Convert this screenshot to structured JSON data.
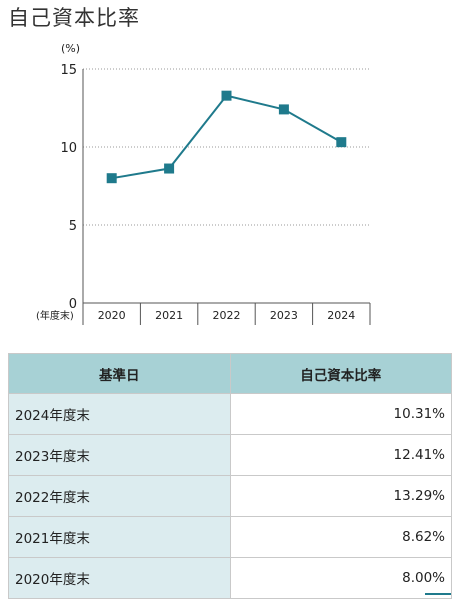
{
  "title": "自己資本比率",
  "colors": {
    "accent": "#1f7a8c",
    "table_header_bg": "#a7d1d5",
    "table_label_bg": "#dcecef"
  },
  "chart_data": {
    "type": "line",
    "unit_label": "(%)",
    "x_axis_caption": "(年度末)",
    "categories": [
      "2020",
      "2021",
      "2022",
      "2023",
      "2024"
    ],
    "series": [
      {
        "values": [
          8.0,
          8.62,
          13.29,
          12.41,
          10.31
        ],
        "color": "#1f7a8c",
        "marker": "square"
      }
    ],
    "ylim": [
      0,
      15
    ],
    "yticks": [
      "0",
      "5",
      "10",
      "15"
    ],
    "grid": "dotted horizontal",
    "legend": "none"
  },
  "table": {
    "headers": [
      "基準日",
      "自己資本比率"
    ],
    "rows": [
      [
        "2024年度末",
        "10.31%"
      ],
      [
        "2023年度末",
        "12.41%"
      ],
      [
        "2022年度末",
        "13.29%"
      ],
      [
        "2021年度末",
        "8.62%"
      ],
      [
        "2020年度末",
        "8.00%"
      ]
    ]
  }
}
